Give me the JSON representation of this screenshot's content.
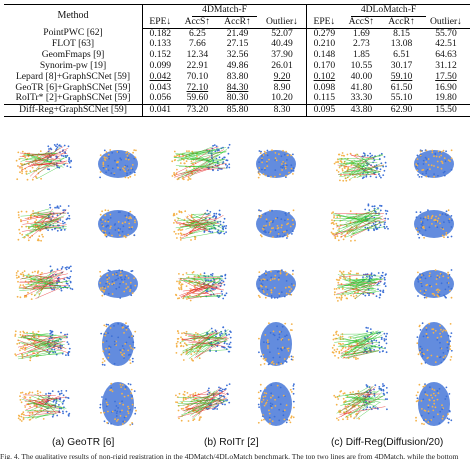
{
  "table": {
    "method_header": "Method",
    "groups": [
      "4DMatch-F",
      "4DLoMatch-F"
    ],
    "metric_headers": [
      "EPE↓",
      "AccS↑",
      "AccR↑",
      "Outlier↓",
      "EPE↓",
      "AccS↑",
      "AccR↑",
      "Outlier↓"
    ],
    "rows": [
      {
        "method": "PointPWC [62]",
        "values": [
          "0.182",
          "6.25",
          "21.49",
          "52.07",
          "0.279",
          "1.69",
          "8.15",
          "55.70"
        ]
      },
      {
        "method": "FLOT [63]",
        "values": [
          "0.133",
          "7.66",
          "27.15",
          "40.49",
          "0.210",
          "2.73",
          "13.08",
          "42.51"
        ]
      },
      {
        "method": "GeomFmaps [9]",
        "values": [
          "0.152",
          "12.34",
          "32.56",
          "37.90",
          "0.148",
          "1.85",
          "6.51",
          "64.63"
        ]
      },
      {
        "method": "Synorim-pw [19]",
        "values": [
          "0.099",
          "22.91",
          "49.86",
          "26.01",
          "0.170",
          "10.55",
          "30.17",
          "31.12"
        ]
      },
      {
        "method": "Lepard [8]+GraphSCNet [59]",
        "values": [
          "0.042",
          "70.10",
          "83.80",
          "9.20",
          "0.102",
          "40.00",
          "59.10",
          "17.50"
        ]
      },
      {
        "method": "GeoTR [6]+GraphSCNet [59]",
        "values": [
          "0.043",
          "72.10",
          "84.30",
          "8.90",
          "0.098",
          "41.80",
          "61.50",
          "16.90"
        ]
      },
      {
        "method": "RoITr* [2]+GraphSCNet [59]",
        "values": [
          "0.056",
          "59.60",
          "80.30",
          "10.20",
          "0.115",
          "33.30",
          "55.10",
          "19.80"
        ]
      },
      {
        "method": "Diff-Reg+GraphSCNet [59]",
        "values": [
          "0.041",
          "73.20",
          "85.80",
          "8.30",
          "0.095",
          "43.80",
          "62.90",
          "15.50"
        ]
      }
    ]
  },
  "figure": {
    "panel_labels": [
      "(a) GeoTR [6]",
      "(b) RoITr [2]",
      "(c) Diff-Reg(Diffusion/20)"
    ],
    "caption": "Fig. 4.   The qualitative results of non-rigid registration in the 4DMatch/4DLoMatch benchmark. The top two lines are from 4DMatch, while the bottom",
    "colors": {
      "source": "#f4b24a",
      "target": "#3c6fd6",
      "correct": "#2ec42e",
      "wrong": "#e52222"
    }
  }
}
